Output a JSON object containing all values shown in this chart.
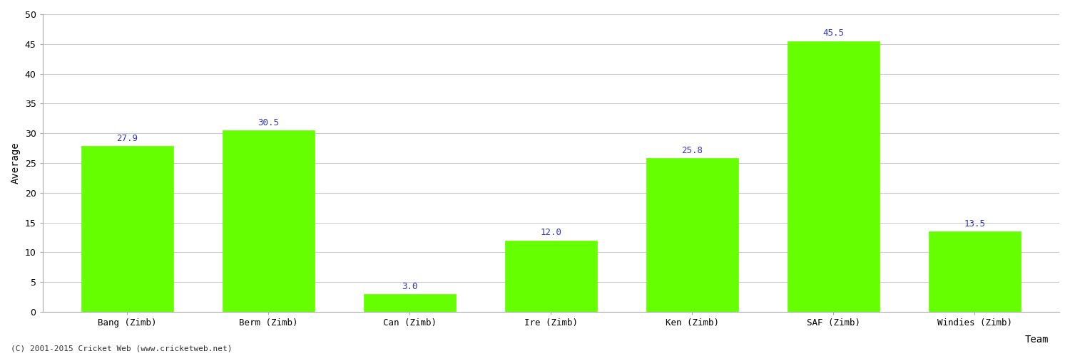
{
  "categories": [
    "Bang (Zimb)",
    "Berm (Zimb)",
    "Can (Zimb)",
    "Ire (Zimb)",
    "Ken (Zimb)",
    "SAF (Zimb)",
    "Windies (Zimb)"
  ],
  "values": [
    27.9,
    30.5,
    3.0,
    12.0,
    25.8,
    45.5,
    13.5
  ],
  "bar_color": "#66ff00",
  "bar_edge_color": "#66ff00",
  "value_label_color": "#3333cc",
  "xlabel": "Team",
  "ylabel": "Average",
  "ylim": [
    0,
    50
  ],
  "yticks": [
    0,
    5,
    10,
    15,
    20,
    25,
    30,
    35,
    40,
    45,
    50
  ],
  "grid_color": "#cccccc",
  "bg_color": "#ffffff",
  "footnote": "(C) 2001-2015 Cricket Web (www.cricketweb.net)",
  "axis_label_fontsize": 10,
  "tick_fontsize": 9,
  "value_label_fontsize": 9,
  "footnote_fontsize": 8,
  "spine_color": "#aaaaaa"
}
